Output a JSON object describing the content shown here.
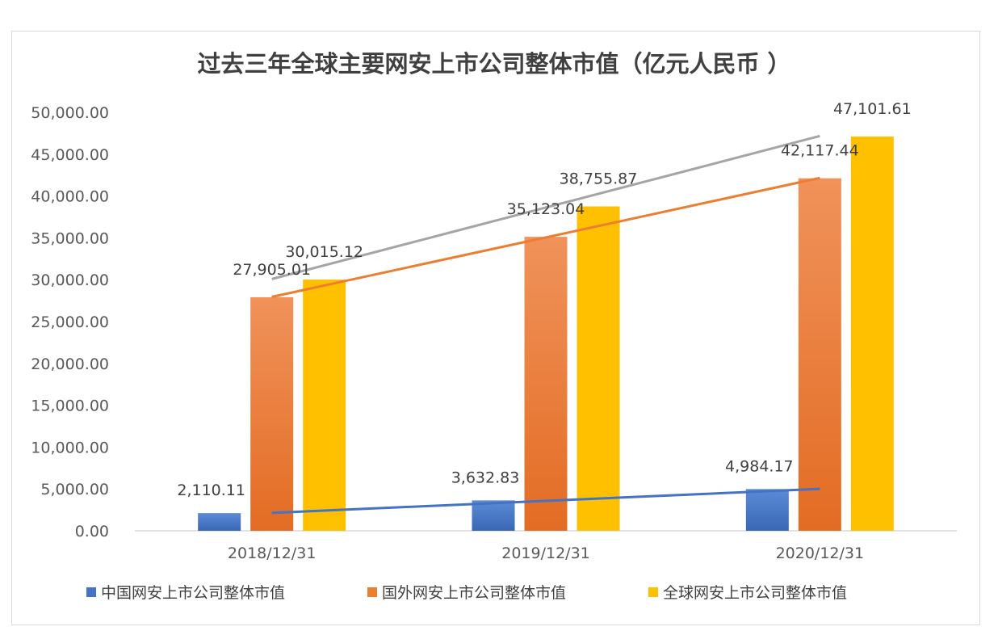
{
  "chart_data": {
    "type": "bar",
    "title": "过去三年全球主要网安上市公司整体市值（亿元人民币 ）",
    "xlabel": "",
    "ylabel": "",
    "categories": [
      "2018/12/31",
      "2019/12/31",
      "2020/12/31"
    ],
    "ylim": [
      0,
      50000
    ],
    "yticks": [
      "0.00",
      "5,000.00",
      "10,000.00",
      "15,000.00",
      "20,000.00",
      "25,000.00",
      "30,000.00",
      "35,000.00",
      "40,000.00",
      "45,000.00",
      "50,000.00"
    ],
    "series": [
      {
        "name": "中国网安上市公司整体市值",
        "color": "#4472C4",
        "values": [
          2110.11,
          3632.83,
          4984.17
        ],
        "labels": [
          "2,110.11",
          "3,632.83",
          "4,984.17"
        ],
        "trendline": true
      },
      {
        "name": "国外网安上市公司整体市值",
        "color": "#ED7D31",
        "values": [
          27905.01,
          35123.04,
          42117.44
        ],
        "labels": [
          "27,905.01",
          "35,123.04",
          "42,117.44"
        ],
        "trendline": true
      },
      {
        "name": "全球网安上市公司整体市值",
        "color": "#FFC000",
        "values": [
          30015.12,
          38755.87,
          47101.61
        ],
        "labels": [
          "30,015.12",
          "38,755.87",
          "47,101.61"
        ],
        "trendline": true,
        "trendline_color": "#A5A5A5"
      }
    ],
    "grid": false,
    "legend_position": "bottom"
  }
}
